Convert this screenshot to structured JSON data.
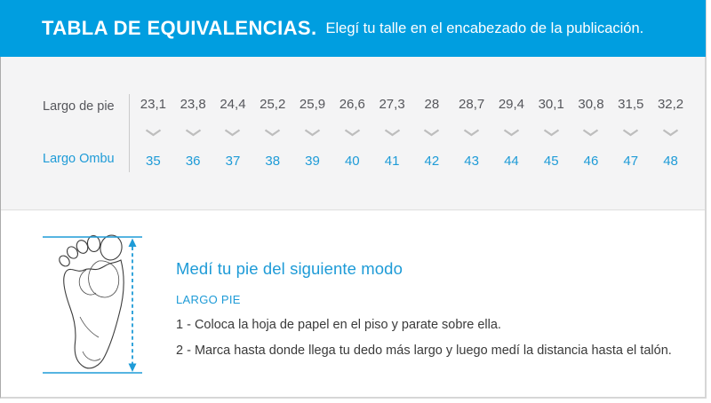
{
  "header": {
    "title": "TABLA DE EQUIVALENCIAS.",
    "subtitle": "Elegí tu talle en el encabezado de la publicación."
  },
  "table": {
    "foot_row_label": "Largo de pie",
    "ombu_row_label": "Largo Ombu",
    "sizes": [
      {
        "foot": "23,1",
        "ombu": "35"
      },
      {
        "foot": "23,8",
        "ombu": "36"
      },
      {
        "foot": "24,4",
        "ombu": "37"
      },
      {
        "foot": "25,2",
        "ombu": "38"
      },
      {
        "foot": "25,9",
        "ombu": "39"
      },
      {
        "foot": "26,6",
        "ombu": "40"
      },
      {
        "foot": "27,3",
        "ombu": "41"
      },
      {
        "foot": "28",
        "ombu": "42"
      },
      {
        "foot": "28,7",
        "ombu": "43"
      },
      {
        "foot": "29,4",
        "ombu": "44"
      },
      {
        "foot": "30,1",
        "ombu": "45"
      },
      {
        "foot": "30,8",
        "ombu": "46"
      },
      {
        "foot": "31,5",
        "ombu": "47"
      },
      {
        "foot": "32,2",
        "ombu": "48"
      }
    ]
  },
  "instructions": {
    "title": "Medí tu pie del siguiente modo",
    "section_label": "LARGO PIE",
    "steps": [
      "1 - Coloca la hoja de papel en el piso y parate sobre ella.",
      "2 - Marca hasta donde llega tu dedo más largo y luego medí la distancia hasta el talón."
    ]
  },
  "icons": {
    "chevron": "chevron-down-icon",
    "measurement_arrow": "vertical-measurement-arrow"
  },
  "colors": {
    "header_bg": "#009EE0",
    "accent_blue": "#1E9BD7",
    "table_bg": "#F4F4F5",
    "text_gray": "#55565B",
    "body_text": "#3A3A3A"
  }
}
